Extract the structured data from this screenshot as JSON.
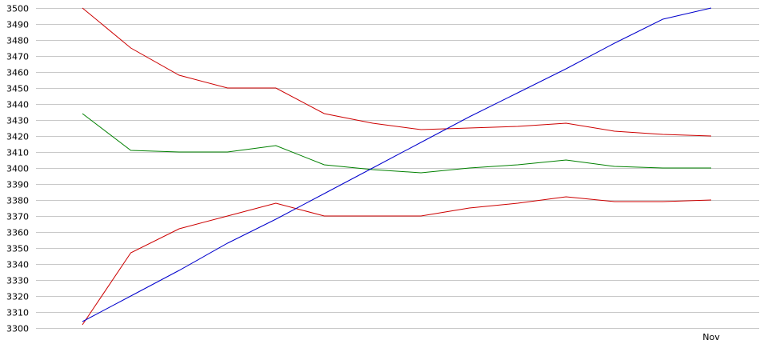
{
  "chart_data": {
    "type": "line",
    "title": "",
    "xlabel": "",
    "ylabel": "",
    "ylim": [
      3300,
      3500
    ],
    "y_ticks": [
      3300,
      3310,
      3320,
      3330,
      3340,
      3350,
      3360,
      3370,
      3380,
      3390,
      3400,
      3410,
      3420,
      3430,
      3440,
      3450,
      3460,
      3470,
      3480,
      3490,
      3500
    ],
    "x_tick_labels": [
      "Nov"
    ],
    "grid": "horizontal",
    "legend": "none",
    "x": [
      0,
      1,
      2,
      3,
      4,
      5,
      6,
      7,
      8,
      9,
      10,
      11,
      12,
      13
    ],
    "series": [
      {
        "color": "#cc0000",
        "values": [
          3500,
          3475,
          3458,
          3450,
          3450,
          3434,
          3428,
          3424,
          3425,
          3426,
          3428,
          3423,
          3421,
          3420
        ]
      },
      {
        "color": "#008000",
        "values": [
          3434,
          3411,
          3410,
          3410,
          3414,
          3402,
          3399,
          3397,
          3400,
          3402,
          3405,
          3401,
          3400,
          3400
        ]
      },
      {
        "color": "#cc0000",
        "values": [
          3302,
          3347,
          3362,
          3370,
          3378,
          3370,
          3370,
          3370,
          3375,
          3378,
          3382,
          3379,
          3379,
          3380
        ]
      },
      {
        "color": "#0000cc",
        "values": [
          3304,
          3320,
          3336,
          3353,
          3368,
          3384,
          3400,
          3416,
          3432,
          3447,
          3462,
          3478,
          3493,
          3500
        ]
      }
    ]
  }
}
